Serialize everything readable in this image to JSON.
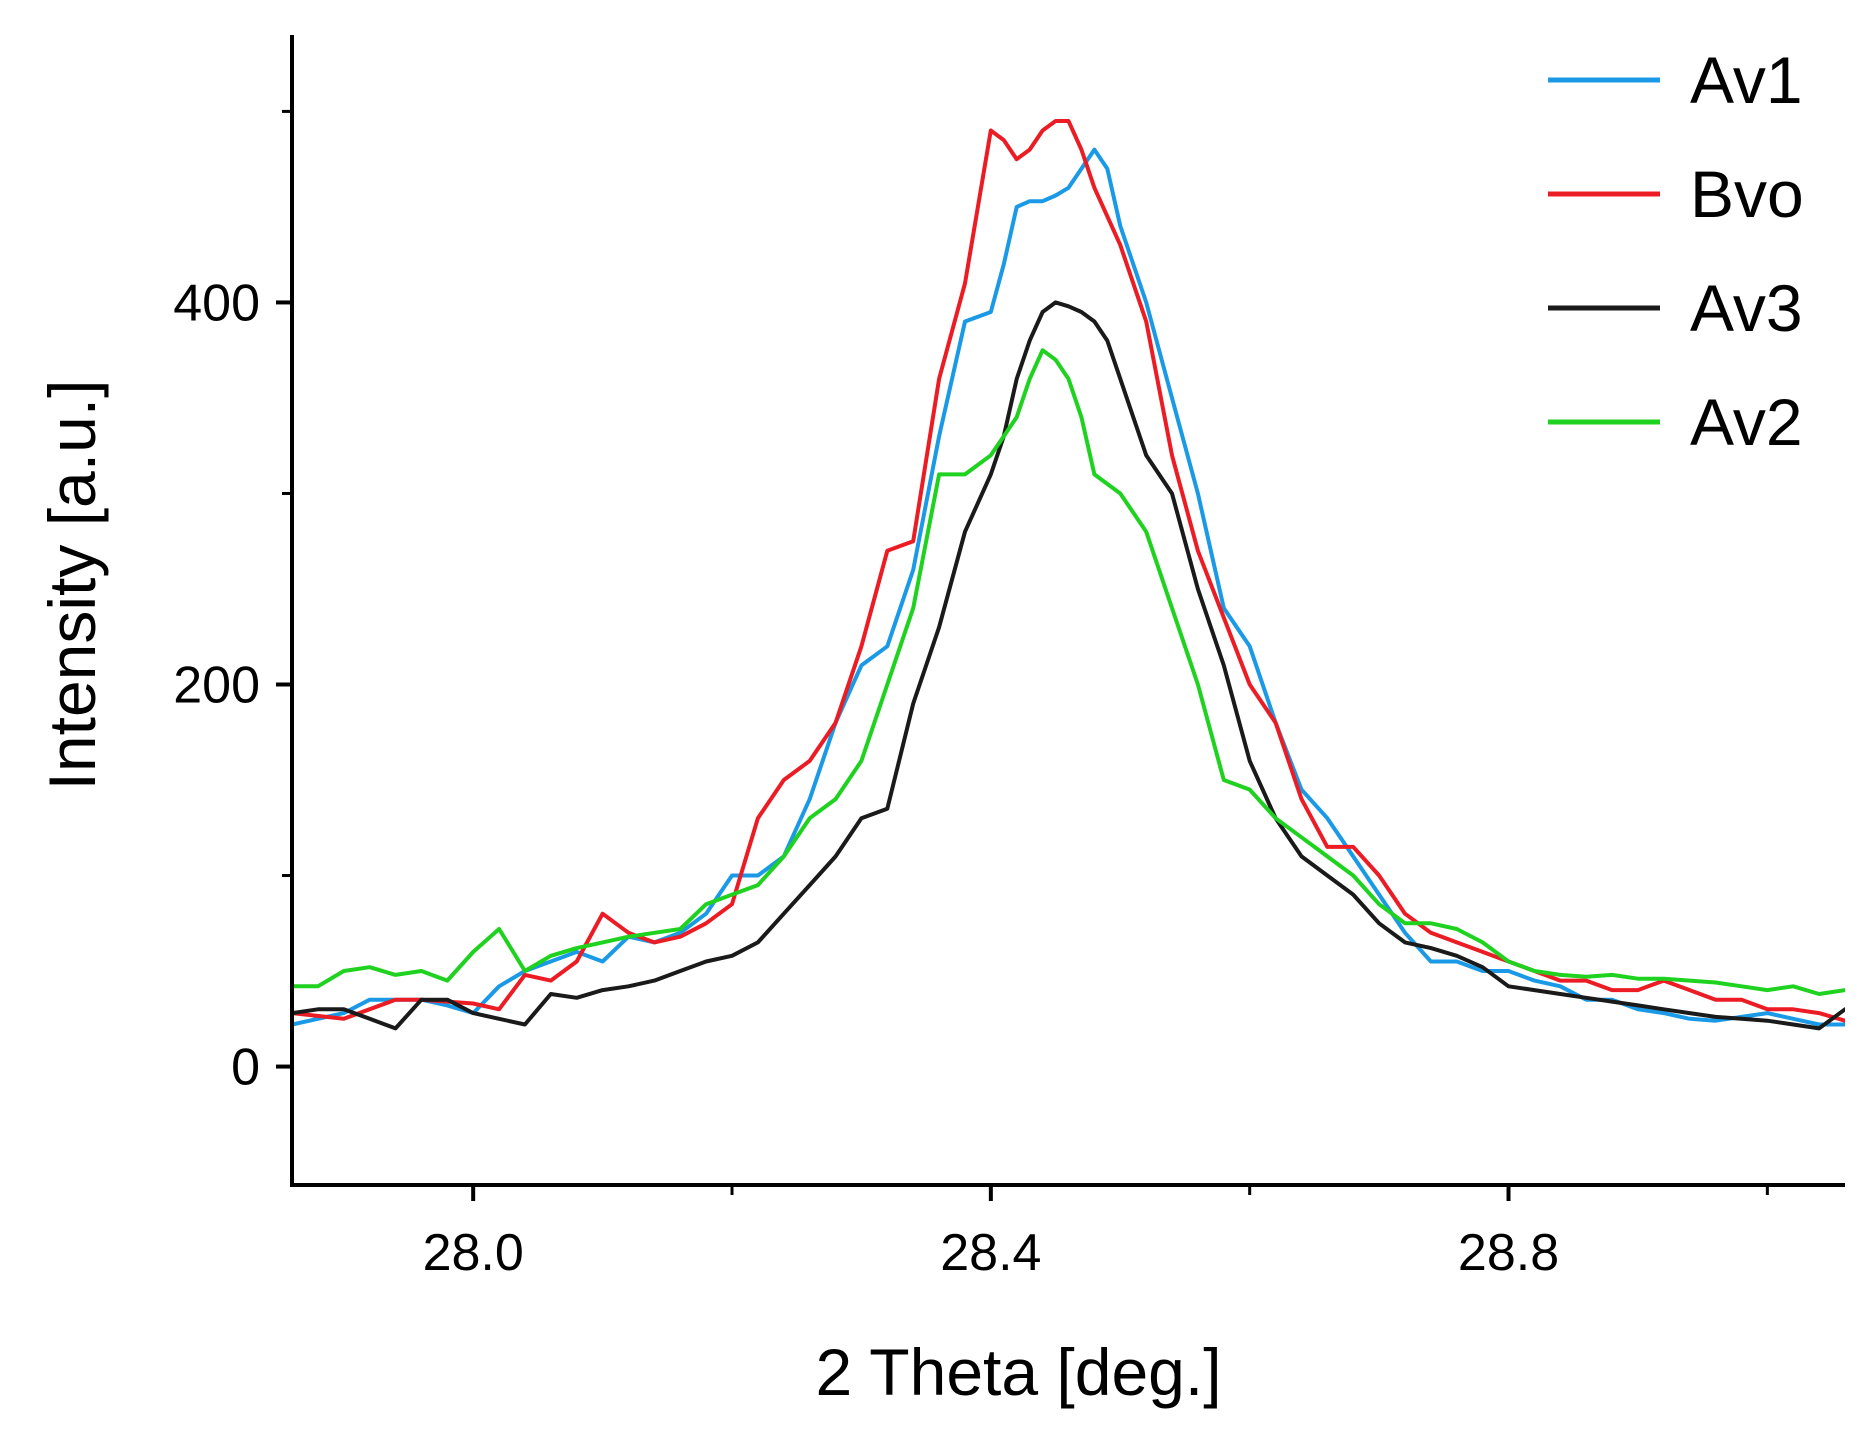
{
  "chart_data": {
    "type": "line",
    "title": "",
    "xlabel": "2 Theta [deg.]",
    "ylabel": "Intensity [a.u.]",
    "xlim": [
      27.86,
      29.06
    ],
    "ylim": [
      -62,
      540
    ],
    "xticks": [
      {
        "value": 28.0,
        "label": "28.0"
      },
      {
        "value": 28.4,
        "label": "28.4"
      },
      {
        "value": 28.8,
        "label": "28.8"
      }
    ],
    "xminor": [
      28.2,
      28.6,
      29.0
    ],
    "yticks": [
      {
        "value": 0,
        "label": "0"
      },
      {
        "value": 200,
        "label": "200"
      },
      {
        "value": 400,
        "label": "400"
      }
    ],
    "yminor": [
      100,
      300,
      500
    ],
    "grid": false,
    "legend_position": "top-right",
    "series": [
      {
        "name": "Av1",
        "color": "#1a9ae6",
        "x": [
          27.86,
          27.9,
          27.92,
          27.94,
          27.96,
          27.98,
          28.0,
          28.02,
          28.04,
          28.06,
          28.08,
          28.1,
          28.12,
          28.14,
          28.16,
          28.18,
          28.2,
          28.22,
          28.24,
          28.26,
          28.28,
          28.3,
          28.32,
          28.34,
          28.36,
          28.38,
          28.4,
          28.41,
          28.42,
          28.43,
          28.44,
          28.45,
          28.46,
          28.47,
          28.48,
          28.49,
          28.5,
          28.52,
          28.54,
          28.56,
          28.58,
          28.6,
          28.62,
          28.64,
          28.66,
          28.68,
          28.7,
          28.72,
          28.74,
          28.76,
          28.78,
          28.8,
          28.82,
          28.84,
          28.86,
          28.88,
          28.9,
          28.92,
          28.94,
          28.96,
          28.98,
          29.0,
          29.02,
          29.04,
          29.06
        ],
        "values": [
          22,
          28,
          35,
          35,
          35,
          32,
          28,
          42,
          50,
          55,
          60,
          55,
          68,
          65,
          70,
          80,
          100,
          100,
          110,
          140,
          180,
          210,
          220,
          260,
          330,
          390,
          395,
          420,
          450,
          453,
          453,
          456,
          460,
          470,
          480,
          470,
          440,
          400,
          350,
          300,
          240,
          220,
          180,
          145,
          130,
          110,
          90,
          70,
          55,
          55,
          50,
          50,
          45,
          42,
          35,
          35,
          30,
          28,
          25,
          24,
          26,
          28,
          25,
          22,
          22
        ]
      },
      {
        "name": "Bvo",
        "color": "#ec1c24",
        "x": [
          27.86,
          27.9,
          27.94,
          27.96,
          28.0,
          28.02,
          28.04,
          28.06,
          28.08,
          28.1,
          28.12,
          28.14,
          28.16,
          28.18,
          28.2,
          28.22,
          28.24,
          28.26,
          28.28,
          28.3,
          28.32,
          28.34,
          28.36,
          28.38,
          28.4,
          28.41,
          28.42,
          28.43,
          28.44,
          28.45,
          28.46,
          28.47,
          28.48,
          28.5,
          28.52,
          28.54,
          28.56,
          28.58,
          28.6,
          28.62,
          28.64,
          28.66,
          28.68,
          28.7,
          28.72,
          28.74,
          28.76,
          28.78,
          28.8,
          28.82,
          28.84,
          28.86,
          28.88,
          28.9,
          28.92,
          28.94,
          28.96,
          28.98,
          29.0,
          29.02,
          29.04,
          29.06
        ],
        "values": [
          28,
          25,
          35,
          35,
          33,
          30,
          48,
          45,
          55,
          80,
          70,
          65,
          68,
          75,
          85,
          130,
          150,
          160,
          180,
          220,
          270,
          275,
          360,
          410,
          490,
          485,
          475,
          480,
          490,
          495,
          495,
          480,
          460,
          430,
          390,
          320,
          270,
          235,
          200,
          180,
          140,
          115,
          115,
          100,
          80,
          70,
          65,
          60,
          55,
          50,
          45,
          45,
          40,
          40,
          45,
          40,
          35,
          35,
          30,
          30,
          28,
          24
        ]
      },
      {
        "name": "Av3",
        "color": "#1a1a1a",
        "x": [
          27.86,
          27.88,
          27.9,
          27.92,
          27.94,
          27.96,
          27.98,
          28.0,
          28.02,
          28.04,
          28.06,
          28.08,
          28.1,
          28.12,
          28.14,
          28.16,
          28.18,
          28.2,
          28.22,
          28.24,
          28.26,
          28.28,
          28.3,
          28.32,
          28.34,
          28.36,
          28.38,
          28.4,
          28.41,
          28.42,
          28.43,
          28.44,
          28.45,
          28.46,
          28.47,
          28.48,
          28.49,
          28.5,
          28.52,
          28.54,
          28.56,
          28.58,
          28.6,
          28.62,
          28.64,
          28.66,
          28.68,
          28.7,
          28.72,
          28.74,
          28.76,
          28.78,
          28.8,
          28.82,
          28.84,
          28.86,
          28.88,
          28.9,
          28.92,
          28.94,
          28.96,
          28.98,
          29.0,
          29.02,
          29.04,
          29.06
        ],
        "values": [
          28,
          30,
          30,
          25,
          20,
          35,
          35,
          28,
          25,
          22,
          38,
          36,
          40,
          42,
          45,
          50,
          55,
          58,
          65,
          80,
          95,
          110,
          130,
          135,
          190,
          230,
          280,
          310,
          330,
          360,
          380,
          395,
          400,
          398,
          395,
          390,
          380,
          360,
          320,
          300,
          250,
          210,
          160,
          130,
          110,
          100,
          90,
          75,
          65,
          62,
          58,
          52,
          42,
          40,
          38,
          36,
          34,
          32,
          30,
          28,
          26,
          25,
          24,
          22,
          20,
          30
        ]
      },
      {
        "name": "Av2",
        "color": "#1fd21f",
        "x": [
          27.86,
          27.88,
          27.9,
          27.92,
          27.94,
          27.96,
          27.98,
          28.0,
          28.02,
          28.04,
          28.06,
          28.08,
          28.1,
          28.12,
          28.14,
          28.16,
          28.18,
          28.2,
          28.22,
          28.24,
          28.26,
          28.28,
          28.3,
          28.32,
          28.34,
          28.36,
          28.38,
          28.4,
          28.41,
          28.42,
          28.43,
          28.44,
          28.45,
          28.46,
          28.47,
          28.48,
          28.5,
          28.52,
          28.54,
          28.56,
          28.58,
          28.6,
          28.62,
          28.64,
          28.66,
          28.68,
          28.7,
          28.72,
          28.74,
          28.76,
          28.78,
          28.8,
          28.82,
          28.84,
          28.86,
          28.88,
          28.9,
          28.92,
          28.94,
          28.96,
          28.98,
          29.0,
          29.02,
          29.04,
          29.06
        ],
        "values": [
          42,
          42,
          50,
          52,
          48,
          50,
          45,
          60,
          72,
          50,
          58,
          62,
          65,
          68,
          70,
          72,
          85,
          90,
          95,
          110,
          130,
          140,
          160,
          200,
          240,
          310,
          310,
          320,
          330,
          340,
          360,
          375,
          370,
          360,
          340,
          310,
          300,
          280,
          240,
          200,
          150,
          145,
          130,
          120,
          110,
          100,
          85,
          75,
          75,
          72,
          65,
          55,
          50,
          48,
          47,
          48,
          46,
          46,
          45,
          44,
          42,
          40,
          42,
          38,
          40
        ]
      }
    ]
  }
}
